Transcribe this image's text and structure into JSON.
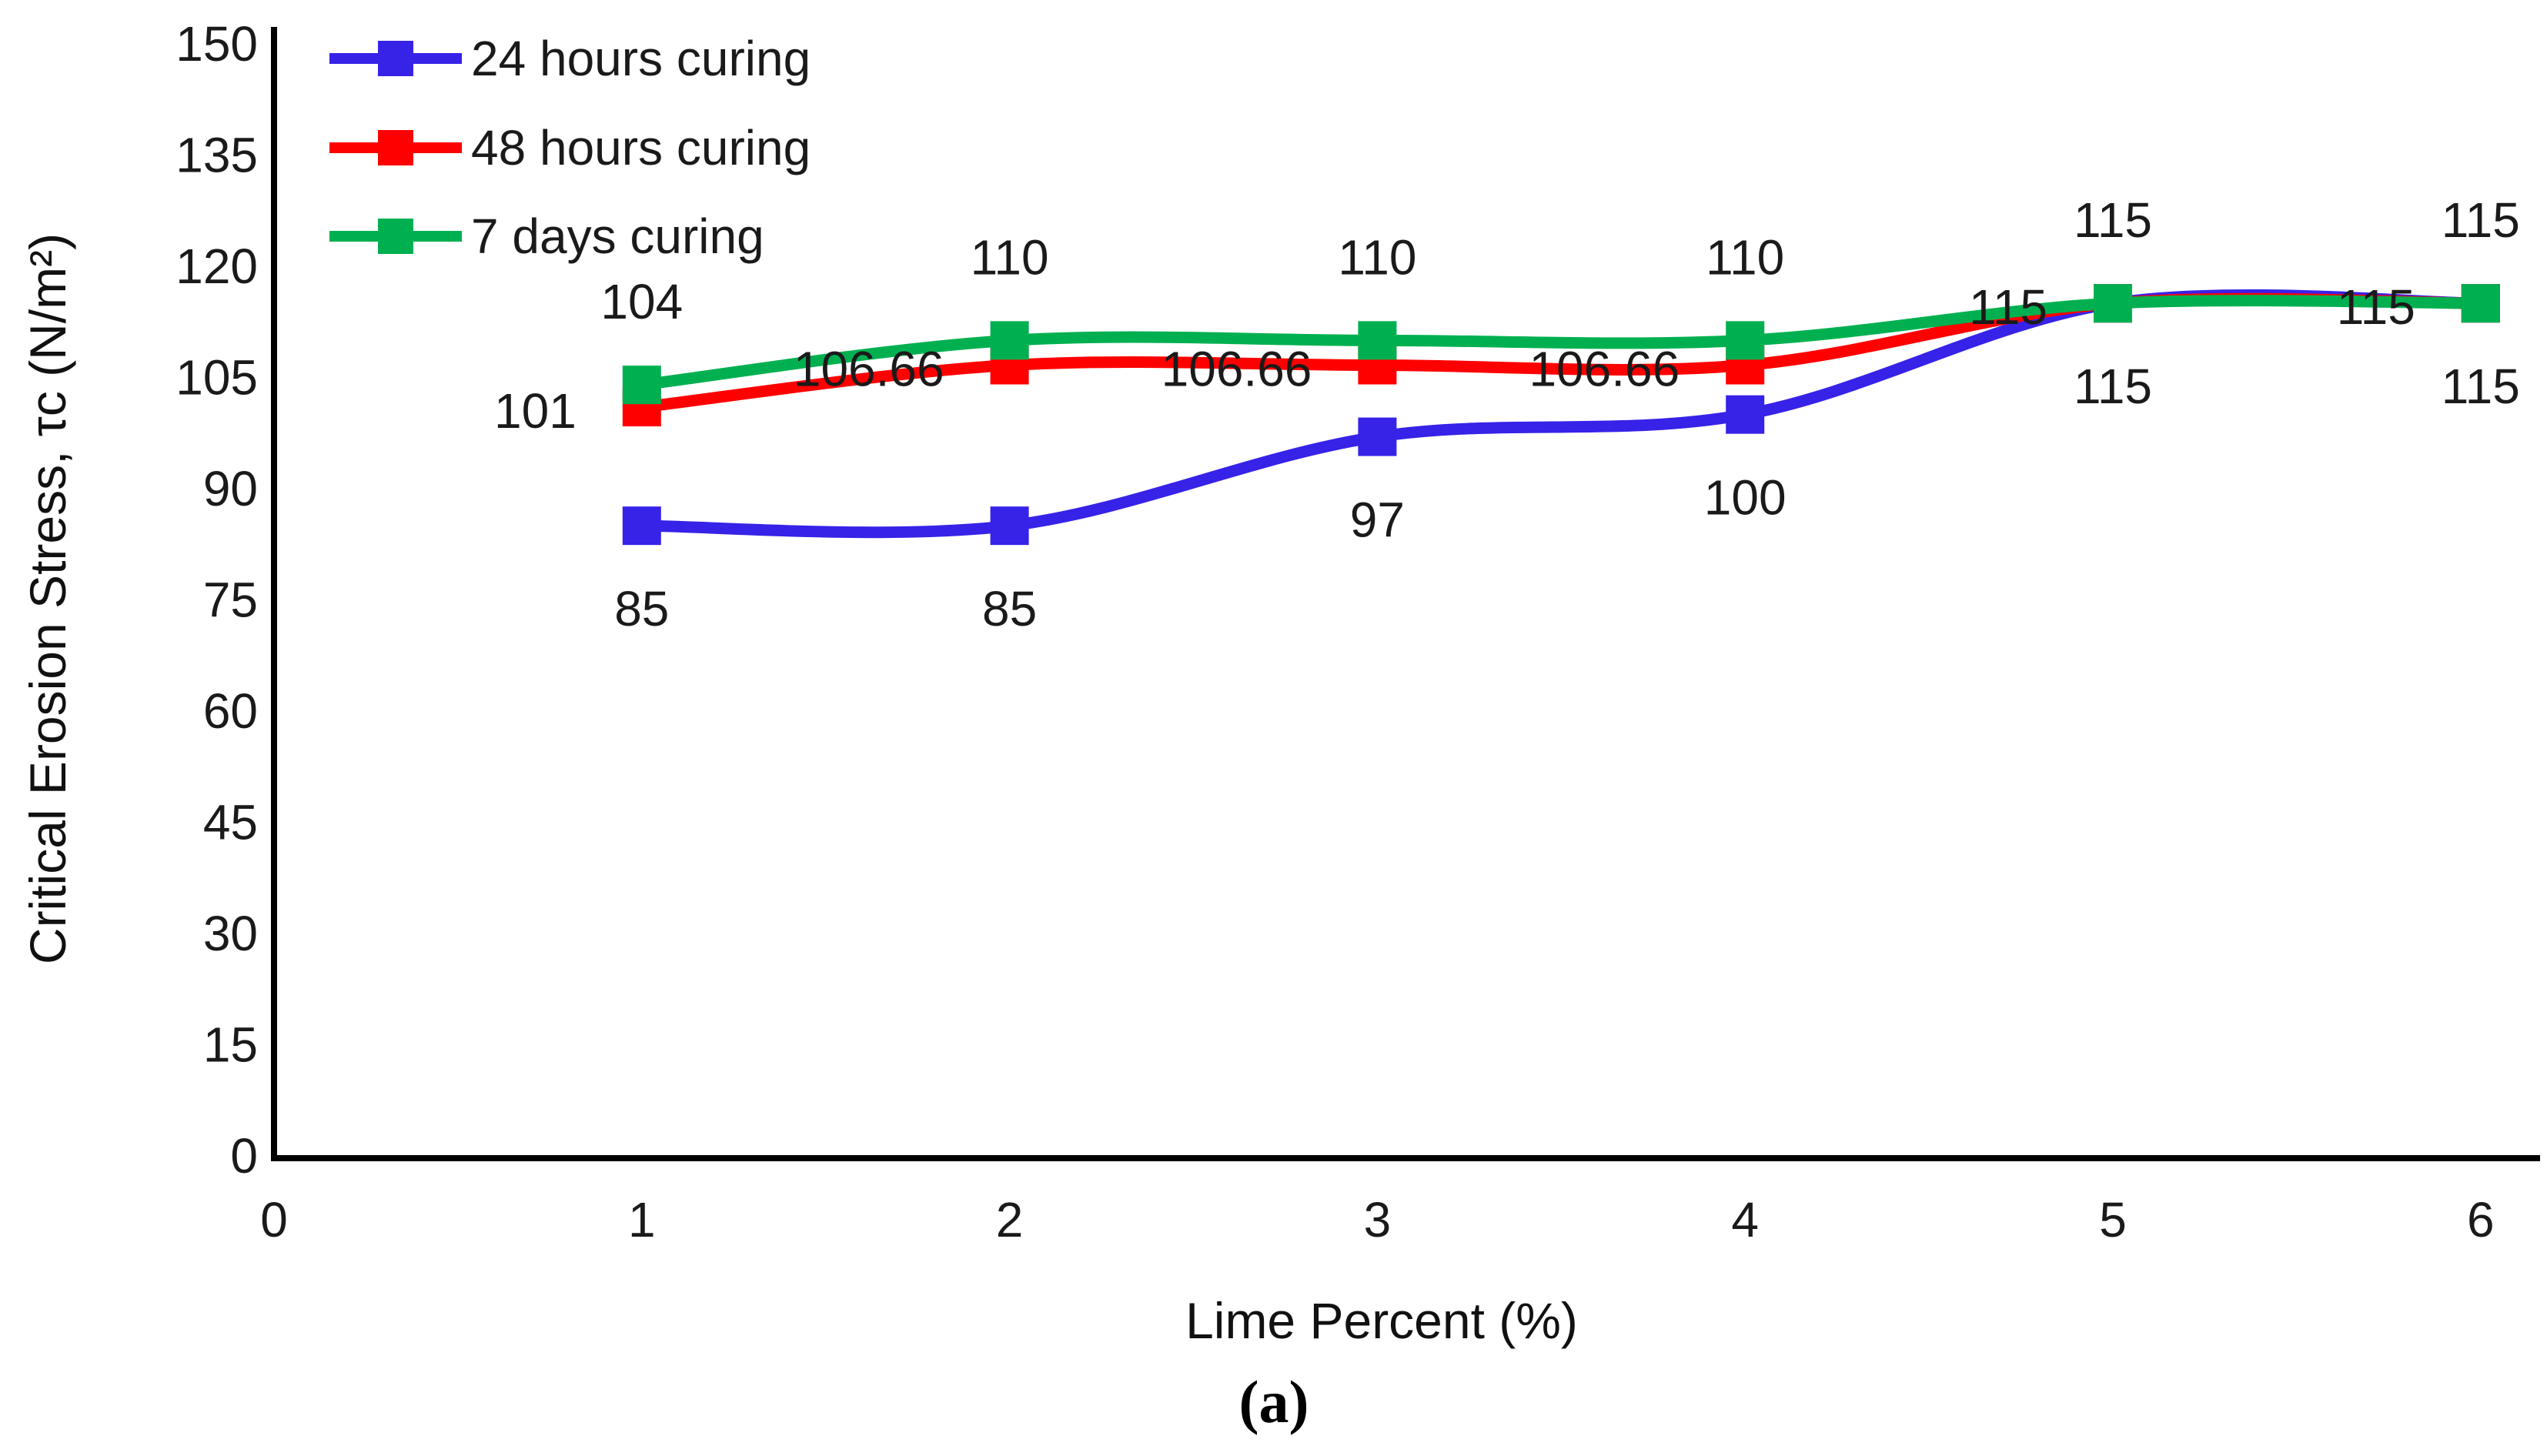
{
  "figure": {
    "caption": "(a)"
  },
  "chart_data": {
    "type": "line",
    "title": "",
    "xlabel": "Lime Percent (%)",
    "ylabel": "Critical Erosion Stress, τc (N/m²)",
    "x": [
      1,
      2,
      3,
      4,
      5,
      6
    ],
    "xlim": [
      0,
      6
    ],
    "ylim": [
      0,
      150
    ],
    "x_ticks": [
      0,
      1,
      2,
      3,
      4,
      5,
      6
    ],
    "y_ticks": [
      0,
      15,
      30,
      45,
      60,
      75,
      90,
      105,
      120,
      135,
      150
    ],
    "grid": false,
    "legend_position": "top-left-inside",
    "axis_color": "#000000",
    "text_color": "#1a1a1a",
    "series": [
      {
        "name": "24 hours curing",
        "color": "#3722E8",
        "marker": "square",
        "values": [
          85,
          85,
          97,
          100,
          115,
          115
        ],
        "labels": [
          "85",
          "85",
          "97",
          "100",
          "115",
          "115"
        ],
        "label_position": "below"
      },
      {
        "name": "48 hours curing",
        "color": "#FF0000",
        "marker": "square",
        "values": [
          101,
          106.66,
          106.66,
          106.66,
          115,
          115
        ],
        "labels": [
          "101",
          "106.66",
          "106.66",
          "106.66",
          "115",
          "115"
        ],
        "label_position": "left"
      },
      {
        "name": "7 days curing",
        "color": "#00B050",
        "marker": "square",
        "values": [
          104,
          110,
          110,
          110,
          115,
          115
        ],
        "labels": [
          "104",
          "110",
          "110",
          "110",
          "115",
          "115"
        ],
        "label_position": "above"
      }
    ]
  }
}
